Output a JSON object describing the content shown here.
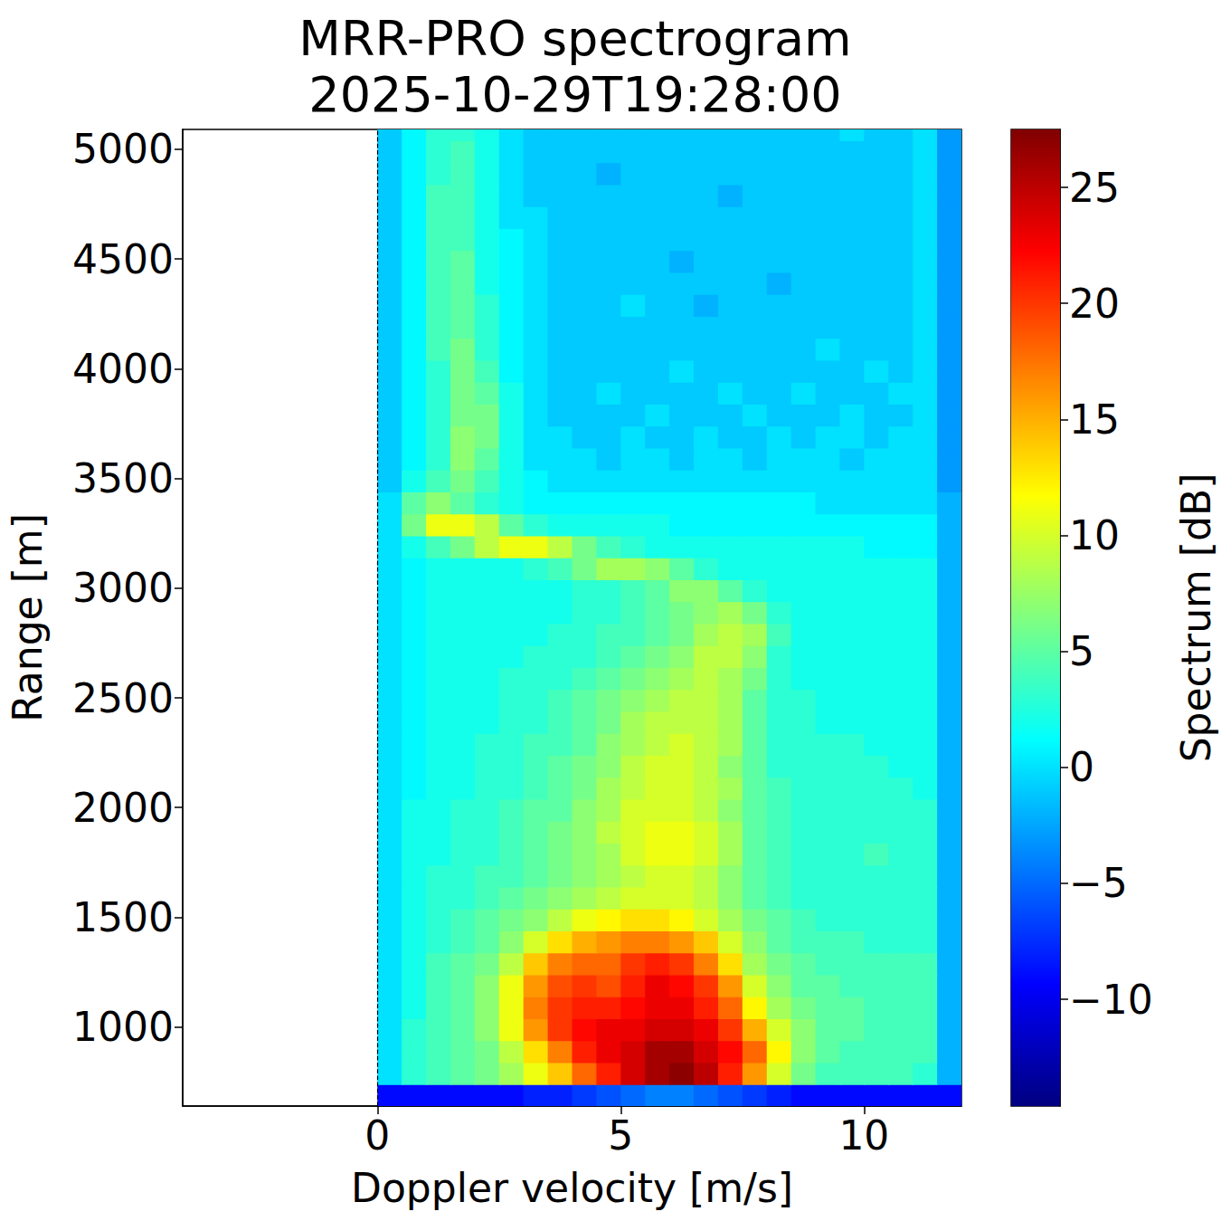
{
  "chart_data": {
    "type": "heatmap",
    "title": "MRR-PRO spectrogram\n2025-10-29T19:28:00",
    "x_label": "Doppler velocity [m/s]",
    "y_label": "Range [m]",
    "xlim": [
      -4,
      12
    ],
    "xticks": [
      0,
      5,
      10
    ],
    "ylim": [
      640,
      5090
    ],
    "yticks": [
      1000,
      1500,
      2000,
      2500,
      3000,
      3500,
      4000,
      4500,
      5000
    ],
    "grid": false,
    "x": [
      0.25,
      0.75,
      1.25,
      1.75,
      2.25,
      2.75,
      3.25,
      3.75,
      4.25,
      4.75,
      5.25,
      5.75,
      6.25,
      6.75,
      7.25,
      7.75,
      8.25,
      8.75,
      9.25,
      9.75,
      10.25,
      10.75,
      11.25,
      11.75
    ],
    "y": [
      690,
      790,
      890,
      990,
      1090,
      1190,
      1290,
      1390,
      1490,
      1590,
      1690,
      1790,
      1890,
      1990,
      2090,
      2190,
      2290,
      2390,
      2490,
      2590,
      2690,
      2790,
      2890,
      2990,
      3090,
      3190,
      3290,
      3390,
      3490,
      3590,
      3690,
      3790,
      3890,
      3990,
      4090,
      4190,
      4290,
      4390,
      4490,
      4590,
      4690,
      4790,
      4890,
      4990,
      5090
    ],
    "z": [
      [
        -9,
        -9,
        -9,
        -9,
        -9,
        -9,
        -8,
        -8,
        -7,
        -6,
        -5,
        -4,
        -4,
        -5,
        -6,
        -7,
        -8,
        -9,
        -9,
        -9,
        -9,
        -9,
        -9,
        -9
      ],
      [
        0,
        3,
        4,
        5,
        6,
        8,
        11,
        14,
        18,
        21,
        24,
        26,
        27,
        25,
        21,
        16,
        10,
        6,
        4,
        4,
        4,
        4,
        3,
        -2
      ],
      [
        0,
        3,
        4,
        5,
        6,
        9,
        13,
        17,
        21,
        23,
        24,
        26,
        26,
        24,
        22,
        18,
        12,
        7,
        5,
        4,
        4,
        4,
        4,
        -2
      ],
      [
        0,
        3,
        4,
        5,
        7,
        11,
        16,
        20,
        22,
        23,
        23,
        24,
        24,
        23,
        20,
        15,
        10,
        7,
        5,
        5,
        4,
        4,
        4,
        -2
      ],
      [
        0,
        2,
        4,
        5,
        7,
        11,
        17,
        20,
        21,
        21,
        22,
        23,
        23,
        21,
        18,
        12,
        8,
        6,
        5,
        5,
        4,
        4,
        4,
        -2
      ],
      [
        0,
        2,
        4,
        5,
        7,
        11,
        16,
        19,
        20,
        19,
        21,
        23,
        22,
        20,
        16,
        10,
        7,
        5,
        5,
        4,
        4,
        4,
        4,
        -2
      ],
      [
        0,
        2,
        4,
        5,
        6,
        9,
        14,
        17,
        18,
        18,
        20,
        21,
        20,
        17,
        13,
        8,
        6,
        5,
        4,
        4,
        4,
        4,
        4,
        -2
      ],
      [
        0,
        2,
        3,
        4,
        5,
        7,
        10,
        13,
        15,
        16,
        17,
        17,
        16,
        14,
        10,
        7,
        5,
        4,
        4,
        4,
        3,
        3,
        3,
        -2
      ],
      [
        0,
        2,
        3,
        4,
        5,
        6,
        7,
        9,
        11,
        12,
        13,
        13,
        12,
        10,
        8,
        6,
        5,
        4,
        3,
        3,
        3,
        3,
        3,
        -2
      ],
      [
        0,
        2,
        3,
        3,
        4,
        5,
        6,
        7,
        8,
        9,
        10,
        10,
        10,
        9,
        7,
        5,
        4,
        3,
        3,
        3,
        3,
        3,
        3,
        -2
      ],
      [
        0,
        2,
        3,
        3,
        4,
        4,
        5,
        6,
        7,
        8,
        9,
        10,
        10,
        9,
        7,
        5,
        4,
        3,
        3,
        3,
        3,
        3,
        3,
        -2
      ],
      [
        0,
        2,
        2,
        3,
        3,
        4,
        5,
        6,
        7,
        8,
        10,
        11,
        11,
        10,
        8,
        5,
        4,
        3,
        3,
        3,
        4,
        3,
        3,
        -2
      ],
      [
        0,
        2,
        2,
        3,
        3,
        4,
        5,
        6,
        7,
        9,
        10,
        11,
        11,
        10,
        8,
        5,
        4,
        3,
        3,
        3,
        3,
        3,
        3,
        -2
      ],
      [
        0,
        2,
        2,
        3,
        3,
        4,
        5,
        5,
        7,
        8,
        10,
        10,
        10,
        9,
        7,
        5,
        4,
        3,
        3,
        3,
        3,
        3,
        3,
        -2
      ],
      [
        0,
        1,
        2,
        2,
        3,
        3,
        4,
        5,
        6,
        8,
        9,
        10,
        10,
        9,
        8,
        5,
        4,
        3,
        3,
        3,
        3,
        3,
        2,
        -2
      ],
      [
        0,
        1,
        2,
        2,
        3,
        3,
        4,
        5,
        6,
        7,
        9,
        10,
        10,
        9,
        7,
        5,
        3,
        3,
        3,
        3,
        3,
        2,
        2,
        -2
      ],
      [
        0,
        1,
        2,
        2,
        3,
        3,
        4,
        4,
        5,
        7,
        8,
        9,
        10,
        9,
        8,
        5,
        3,
        3,
        3,
        3,
        2,
        2,
        2,
        -2
      ],
      [
        0,
        1,
        2,
        2,
        2,
        3,
        3,
        4,
        5,
        6,
        8,
        9,
        9,
        9,
        8,
        5,
        3,
        3,
        2,
        2,
        2,
        2,
        2,
        -2
      ],
      [
        0,
        1,
        2,
        2,
        2,
        3,
        3,
        4,
        5,
        6,
        7,
        8,
        9,
        9,
        8,
        5,
        3,
        3,
        2,
        2,
        2,
        2,
        2,
        -2
      ],
      [
        0,
        1,
        2,
        2,
        2,
        3,
        3,
        3,
        4,
        5,
        6,
        7,
        8,
        9,
        8,
        6,
        3,
        2,
        2,
        2,
        2,
        2,
        2,
        -2
      ],
      [
        0,
        1,
        2,
        2,
        2,
        2,
        3,
        3,
        3,
        4,
        5,
        6,
        7,
        9,
        9,
        7,
        3,
        2,
        2,
        2,
        2,
        2,
        2,
        -2
      ],
      [
        0,
        1,
        2,
        2,
        2,
        2,
        2,
        3,
        3,
        4,
        4,
        5,
        6,
        8,
        9,
        8,
        4,
        2,
        2,
        2,
        2,
        2,
        2,
        -2
      ],
      [
        0,
        1,
        2,
        2,
        2,
        2,
        2,
        2,
        3,
        3,
        4,
        5,
        6,
        7,
        8,
        6,
        3,
        2,
        2,
        2,
        2,
        2,
        2,
        -2
      ],
      [
        0,
        1,
        2,
        2,
        2,
        2,
        2,
        2,
        3,
        3,
        4,
        5,
        7,
        7,
        5,
        3,
        2,
        2,
        2,
        2,
        2,
        2,
        2,
        -2
      ],
      [
        0,
        1,
        2,
        2,
        2,
        2,
        3,
        4,
        6,
        8,
        8,
        7,
        5,
        3,
        2,
        2,
        2,
        2,
        2,
        2,
        2,
        2,
        2,
        -2
      ],
      [
        0,
        2,
        4,
        6,
        9,
        11,
        11,
        9,
        6,
        4,
        3,
        2,
        2,
        2,
        2,
        2,
        2,
        2,
        2,
        2,
        1,
        1,
        1,
        -2
      ],
      [
        0,
        6,
        11,
        11,
        9,
        5,
        3,
        2,
        2,
        2,
        2,
        2,
        1,
        1,
        1,
        1,
        1,
        1,
        1,
        1,
        1,
        1,
        1,
        -2
      ],
      [
        0,
        5,
        7,
        5,
        3,
        2,
        1,
        1,
        1,
        1,
        1,
        1,
        1,
        1,
        1,
        1,
        1,
        1,
        0,
        0,
        0,
        0,
        0,
        -2
      ],
      [
        -1,
        2,
        4,
        6,
        4,
        2,
        1,
        0,
        0,
        0,
        0,
        0,
        0,
        0,
        0,
        0,
        0,
        0,
        0,
        0,
        0,
        0,
        0,
        -3
      ],
      [
        -1,
        1,
        3,
        7,
        5,
        2,
        0,
        0,
        0,
        -1,
        0,
        0,
        -1,
        0,
        0,
        -1,
        0,
        0,
        0,
        -1,
        0,
        0,
        0,
        -3
      ],
      [
        -1,
        1,
        3,
        7,
        6,
        2,
        0,
        0,
        -1,
        -1,
        0,
        -1,
        -1,
        0,
        -1,
        -1,
        0,
        -1,
        0,
        0,
        -1,
        0,
        0,
        -3
      ],
      [
        -1,
        1,
        3,
        6,
        6,
        2,
        0,
        -1,
        -1,
        -1,
        -1,
        0,
        -1,
        -1,
        -1,
        0,
        -1,
        -1,
        -1,
        0,
        -1,
        -1,
        0,
        -3
      ],
      [
        -1,
        1,
        3,
        6,
        5,
        2,
        0,
        -1,
        -1,
        0,
        -1,
        -1,
        -1,
        -1,
        0,
        -1,
        -1,
        0,
        -1,
        -1,
        -1,
        0,
        0,
        -3
      ],
      [
        -1,
        1,
        3,
        6,
        4,
        1,
        0,
        -1,
        -1,
        -1,
        -1,
        -1,
        0,
        -1,
        -1,
        -1,
        -1,
        -1,
        -1,
        -1,
        0,
        -1,
        0,
        -3
      ],
      [
        -1,
        1,
        4,
        6,
        3,
        1,
        0,
        -1,
        -1,
        -1,
        -1,
        -1,
        -1,
        -1,
        -1,
        -1,
        -1,
        -1,
        0,
        -1,
        -1,
        -1,
        0,
        -3
      ],
      [
        -1,
        1,
        4,
        5,
        3,
        1,
        0,
        -1,
        -1,
        -1,
        -1,
        -1,
        -1,
        -1,
        -1,
        -1,
        -1,
        -1,
        -1,
        -1,
        -1,
        -1,
        0,
        -3
      ],
      [
        -1,
        1,
        4,
        5,
        3,
        1,
        0,
        -1,
        -1,
        -1,
        0,
        -1,
        -1,
        -2,
        -1,
        -1,
        -1,
        -1,
        -1,
        -1,
        -1,
        -1,
        0,
        -3
      ],
      [
        -1,
        1,
        4,
        5,
        2,
        1,
        0,
        -1,
        -1,
        -1,
        -1,
        -1,
        -1,
        -1,
        -1,
        -1,
        -2,
        -1,
        -1,
        -1,
        -1,
        -1,
        0,
        -3
      ],
      [
        -1,
        1,
        4,
        5,
        2,
        1,
        0,
        -1,
        -1,
        -1,
        -1,
        -1,
        -2,
        -1,
        -1,
        -1,
        -1,
        -1,
        -1,
        -1,
        -1,
        -1,
        0,
        -3
      ],
      [
        -1,
        1,
        4,
        4,
        2,
        1,
        0,
        -1,
        -1,
        -1,
        -1,
        -1,
        -1,
        -1,
        -1,
        -1,
        -1,
        -1,
        -1,
        -1,
        -1,
        -1,
        0,
        -3
      ],
      [
        -1,
        1,
        4,
        4,
        2,
        0,
        0,
        -1,
        -1,
        -1,
        -1,
        -1,
        -1,
        -1,
        -1,
        -1,
        -1,
        -1,
        -1,
        -1,
        -1,
        -1,
        0,
        -3
      ],
      [
        -1,
        1,
        4,
        4,
        2,
        0,
        -1,
        -1,
        -1,
        -1,
        -1,
        -1,
        -1,
        -1,
        -2,
        -1,
        -1,
        -1,
        -1,
        -1,
        -1,
        -1,
        0,
        -3
      ],
      [
        -1,
        1,
        3,
        4,
        2,
        0,
        -1,
        -1,
        -1,
        -2,
        -1,
        -1,
        -1,
        -1,
        -1,
        -1,
        -1,
        -1,
        -1,
        -1,
        -1,
        -1,
        0,
        -3
      ],
      [
        -1,
        1,
        3,
        4,
        2,
        0,
        -1,
        -1,
        -1,
        -1,
        -1,
        -1,
        -1,
        -1,
        -1,
        -1,
        -1,
        -1,
        -1,
        -1,
        -1,
        -1,
        0,
        -3
      ],
      [
        -1,
        1,
        3,
        3,
        2,
        0,
        -1,
        -1,
        -1,
        -1,
        -1,
        -1,
        -1,
        -1,
        -1,
        -1,
        -1,
        -1,
        -1,
        0,
        -1,
        -1,
        0,
        -3
      ]
    ],
    "colorbar": {
      "label": "Spectrum [dB]",
      "range": [
        -14.6,
        27.5
      ],
      "ticks": [
        {
          "value": -10,
          "label": "−10"
        },
        {
          "value": -5,
          "label": "−5"
        },
        0,
        5,
        10,
        15,
        20,
        25
      ]
    }
  }
}
